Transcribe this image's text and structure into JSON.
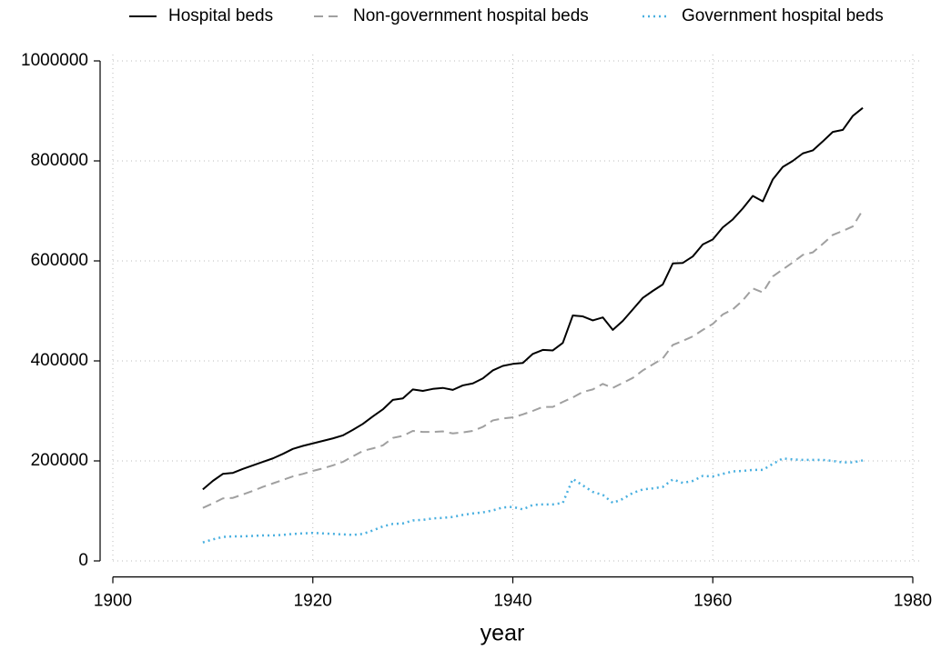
{
  "chart_data": {
    "type": "line",
    "x_label": "year",
    "x": [
      1909,
      1910,
      1911,
      1912,
      1913,
      1914,
      1915,
      1916,
      1917,
      1918,
      1919,
      1920,
      1921,
      1922,
      1923,
      1924,
      1925,
      1926,
      1927,
      1928,
      1929,
      1930,
      1931,
      1932,
      1933,
      1934,
      1935,
      1936,
      1937,
      1938,
      1939,
      1940,
      1941,
      1942,
      1943,
      1944,
      1945,
      1946,
      1947,
      1948,
      1949,
      1950,
      1951,
      1952,
      1953,
      1954,
      1955,
      1956,
      1957,
      1958,
      1959,
      1960,
      1961,
      1962,
      1963,
      1964,
      1965,
      1966,
      1967,
      1968,
      1969,
      1970,
      1971,
      1972,
      1973,
      1974,
      1975
    ],
    "series": [
      {
        "name": "Hospital beds",
        "color": "#000000",
        "dash": "solid",
        "values": [
          143000,
          160000,
          174000,
          176000,
          184000,
          191000,
          198000,
          205000,
          214000,
          224000,
          230000,
          235000,
          240000,
          245000,
          251000,
          262000,
          274000,
          289000,
          303000,
          322000,
          325000,
          343000,
          340000,
          344000,
          346000,
          342000,
          351000,
          355000,
          365000,
          381000,
          390000,
          394000,
          396000,
          414000,
          422000,
          421000,
          436000,
          491000,
          489000,
          481000,
          487000,
          462000,
          480000,
          503000,
          526000,
          540000,
          553000,
          595000,
          596000,
          609000,
          633000,
          643000,
          667000,
          683000,
          705000,
          730000,
          719000,
          763000,
          788000,
          800000,
          815000,
          821000,
          839000,
          858000,
          862000,
          890000,
          906000
        ]
      },
      {
        "name": "Non-government hospital beds",
        "color": "#a0a0a0",
        "dash": "dashed",
        "values": [
          106000,
          115000,
          125000,
          126000,
          133000,
          140000,
          148000,
          155000,
          162000,
          169000,
          174000,
          180000,
          185000,
          191000,
          198000,
          209000,
          220000,
          225000,
          231000,
          246000,
          250000,
          260000,
          258000,
          258000,
          259000,
          255000,
          257000,
          260000,
          268000,
          281000,
          285000,
          287000,
          293000,
          300000,
          308000,
          308000,
          318000,
          327000,
          338000,
          343000,
          354000,
          346000,
          356000,
          366000,
          381000,
          393000,
          405000,
          432000,
          440000,
          449000,
          462000,
          474000,
          493000,
          503000,
          521000,
          545000,
          537000,
          569000,
          583000,
          597000,
          612000,
          617000,
          634000,
          652000,
          660000,
          669000,
          702000
        ]
      },
      {
        "name": "Government hospital beds",
        "color": "#4ab0e0",
        "dash": "dotted",
        "values": [
          37000,
          43000,
          48000,
          49000,
          49000,
          50000,
          51000,
          51000,
          52000,
          54000,
          55000,
          56000,
          55000,
          54000,
          53000,
          52000,
          54000,
          61000,
          69000,
          74000,
          75000,
          81000,
          82000,
          85000,
          86000,
          88000,
          92000,
          95000,
          97000,
          101000,
          107000,
          108000,
          103000,
          112000,
          113000,
          113000,
          116000,
          164000,
          151000,
          138000,
          132000,
          116000,
          124000,
          136000,
          143000,
          145000,
          148000,
          163000,
          156000,
          160000,
          170000,
          169000,
          174000,
          179000,
          180000,
          182000,
          182000,
          194000,
          205000,
          203000,
          202000,
          202000,
          202000,
          200000,
          197000,
          197000,
          201000
        ]
      }
    ],
    "xlim": [
      1900,
      1980
    ],
    "xticks": [
      1900,
      1920,
      1940,
      1960,
      1980
    ],
    "ylim": [
      -32000,
      1010000
    ],
    "yticks": [
      0,
      200000,
      400000,
      600000,
      800000,
      1000000
    ],
    "grid": true,
    "legend": "top"
  }
}
